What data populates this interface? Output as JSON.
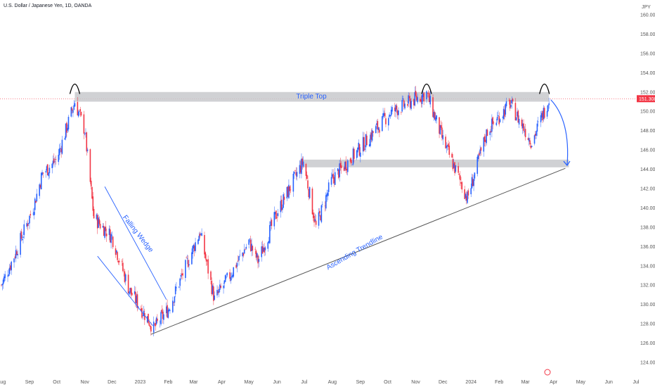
{
  "chart_data": {
    "type": "candlestick",
    "title": "U.S. Dollar / Japanese Yen, 1D, OANDA",
    "currency": "JPY",
    "ylim": [
      123,
      161
    ],
    "y_ticks": [
      "124.000",
      "126.000",
      "128.000",
      "130.000",
      "132.000",
      "134.000",
      "136.000",
      "138.000",
      "140.000",
      "142.000",
      "144.000",
      "146.000",
      "148.000",
      "150.000",
      "152.000",
      "154.000",
      "156.000",
      "158.000",
      "160.000"
    ],
    "x_ticks": [
      "Aug",
      "Sep",
      "Oct",
      "Nov",
      "Dec",
      "2023",
      "Feb",
      "Mar",
      "Apr",
      "May",
      "Jun",
      "Jul",
      "Aug",
      "Sep",
      "Oct",
      "Nov",
      "Dec",
      "2024",
      "Feb",
      "Mar",
      "Apr",
      "May",
      "Jun",
      "Jul"
    ],
    "last_price": "151.308",
    "key_points": [
      {
        "date": "2022-08-01",
        "close": 132.0
      },
      {
        "date": "2022-08-15",
        "close": 135.0
      },
      {
        "date": "2022-09-05",
        "close": 140.0
      },
      {
        "date": "2022-09-15",
        "close": 143.5
      },
      {
        "date": "2022-10-01",
        "close": 145.0
      },
      {
        "date": "2022-10-21",
        "close": 151.0
      },
      {
        "date": "2022-11-01",
        "close": 148.0
      },
      {
        "date": "2022-11-11",
        "close": 139.0
      },
      {
        "date": "2022-12-01",
        "close": 137.0
      },
      {
        "date": "2022-12-20",
        "close": 131.5
      },
      {
        "date": "2023-01-16",
        "close": 127.5
      },
      {
        "date": "2023-02-01",
        "close": 129.5
      },
      {
        "date": "2023-03-08",
        "close": 137.5
      },
      {
        "date": "2023-03-24",
        "close": 130.5
      },
      {
        "date": "2023-04-10",
        "close": 133.0
      },
      {
        "date": "2023-05-01",
        "close": 136.5
      },
      {
        "date": "2023-05-11",
        "close": 134.5
      },
      {
        "date": "2023-06-01",
        "close": 139.5
      },
      {
        "date": "2023-06-30",
        "close": 144.8
      },
      {
        "date": "2023-07-14",
        "close": 138.0
      },
      {
        "date": "2023-08-01",
        "close": 143.0
      },
      {
        "date": "2023-08-30",
        "close": 146.0
      },
      {
        "date": "2023-10-03",
        "close": 149.8
      },
      {
        "date": "2023-11-13",
        "close": 151.9
      },
      {
        "date": "2023-12-01",
        "close": 147.0
      },
      {
        "date": "2023-12-28",
        "close": 141.0
      },
      {
        "date": "2024-01-19",
        "close": 148.0
      },
      {
        "date": "2024-02-13",
        "close": 150.8
      },
      {
        "date": "2024-03-08",
        "close": 146.8
      },
      {
        "date": "2024-03-27",
        "close": 151.3
      }
    ],
    "zones": [
      {
        "from": 151.0,
        "to": 152.0,
        "start": "2022-10-21",
        "end": "2024-03-27"
      },
      {
        "from": 144.2,
        "to": 145.0,
        "start": "2023-06-26",
        "end": "2024-04-18"
      }
    ],
    "trendline": {
      "start": {
        "date": "2023-01-13",
        "value": 126.9
      },
      "end": {
        "date": "2024-04-14",
        "value": 144.1
      }
    },
    "wedge": {
      "upper": {
        "start": {
          "date": "2022-11-23",
          "value": 142.2
        },
        "end": {
          "date": "2023-01-30",
          "value": 130.5
        }
      },
      "lower": {
        "start": {
          "date": "2022-11-15",
          "value": 135.0
        },
        "end": {
          "date": "2023-01-15",
          "value": 127.8
        }
      }
    },
    "annotations": [
      "Triple Top",
      "Falling Wedge",
      "Ascending Trendline"
    ],
    "colors": {
      "up": "#2962ff",
      "down": "#f23645",
      "zone": "#c8c9cc",
      "trend": "#555555",
      "accent": "#2962ff",
      "price_line": "#f23645"
    }
  }
}
